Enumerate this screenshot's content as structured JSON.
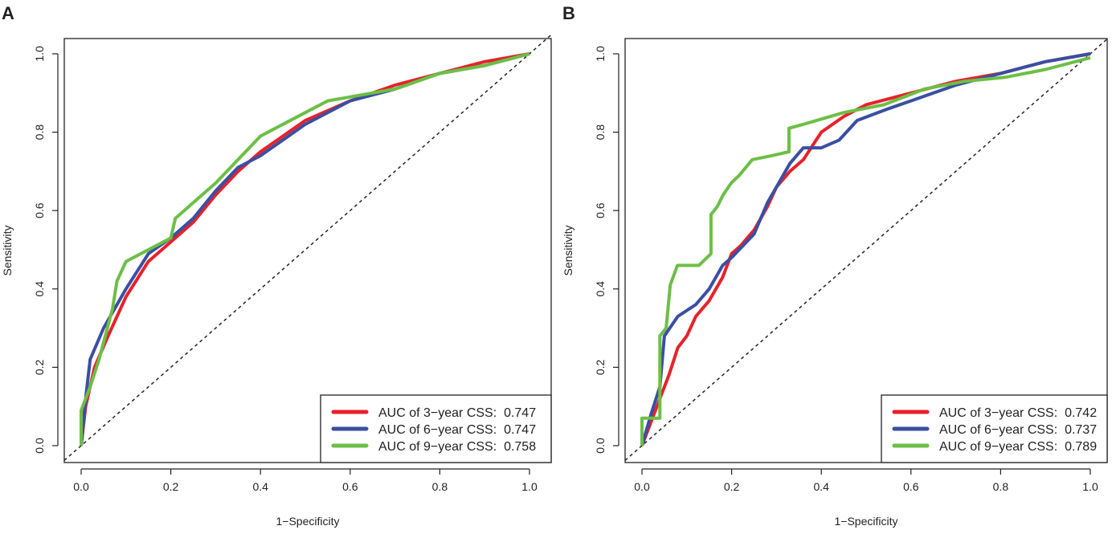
{
  "chart_data": [
    {
      "type": "line",
      "panel_label": "A",
      "xlabel": "1−Specificity",
      "ylabel": "Sensitivity",
      "xlim": [
        0,
        1
      ],
      "ylim": [
        0,
        1
      ],
      "xticks": [
        "0.0",
        "0.2",
        "0.4",
        "0.6",
        "0.8",
        "1.0"
      ],
      "yticks": [
        "0.0",
        "0.2",
        "0.4",
        "0.6",
        "0.8",
        "1.0"
      ],
      "legend_position": "bottom-right",
      "reference_line": "diagonal dashed",
      "series": [
        {
          "name": "AUC of 3−year CSS:  0.747",
          "color": "#e8212a",
          "x": [
            0,
            0.01,
            0.03,
            0.06,
            0.1,
            0.15,
            0.2,
            0.25,
            0.3,
            0.35,
            0.4,
            0.45,
            0.5,
            0.6,
            0.7,
            0.8,
            0.9,
            1
          ],
          "y": [
            0,
            0.1,
            0.2,
            0.28,
            0.38,
            0.47,
            0.52,
            0.57,
            0.64,
            0.7,
            0.75,
            0.79,
            0.83,
            0.88,
            0.92,
            0.95,
            0.98,
            1
          ]
        },
        {
          "name": "AUC of 6−year CSS:  0.747",
          "color": "#3a4fa3",
          "x": [
            0,
            0.01,
            0.02,
            0.05,
            0.1,
            0.15,
            0.2,
            0.25,
            0.3,
            0.35,
            0.4,
            0.45,
            0.5,
            0.6,
            0.7,
            0.8,
            0.9,
            1
          ],
          "y": [
            0,
            0.12,
            0.22,
            0.3,
            0.4,
            0.49,
            0.53,
            0.58,
            0.65,
            0.71,
            0.74,
            0.78,
            0.82,
            0.88,
            0.91,
            0.95,
            0.97,
            1
          ]
        },
        {
          "name": "AUC of 9−year CSS:  0.758",
          "color": "#6cbf45",
          "x": [
            0,
            0,
            0.02,
            0.04,
            0.07,
            0.08,
            0.1,
            0.15,
            0.2,
            0.21,
            0.25,
            0.3,
            0.35,
            0.4,
            0.45,
            0.5,
            0.55,
            0.6,
            0.7,
            0.8,
            0.9,
            1
          ],
          "y": [
            0,
            0.09,
            0.15,
            0.22,
            0.35,
            0.42,
            0.47,
            0.5,
            0.53,
            0.58,
            0.62,
            0.67,
            0.73,
            0.79,
            0.82,
            0.85,
            0.88,
            0.89,
            0.91,
            0.95,
            0.97,
            1
          ]
        }
      ]
    },
    {
      "type": "line",
      "panel_label": "B",
      "xlabel": "1−Specificity",
      "ylabel": "Sensitivity",
      "xlim": [
        0,
        1
      ],
      "ylim": [
        0,
        1
      ],
      "xticks": [
        "0.0",
        "0.2",
        "0.4",
        "0.6",
        "0.8",
        "1.0"
      ],
      "yticks": [
        "0.0",
        "0.2",
        "0.4",
        "0.6",
        "0.8",
        "1.0"
      ],
      "legend_position": "bottom-right",
      "reference_line": "diagonal dashed",
      "series": [
        {
          "name": "AUC of 3−year CSS:  0.742",
          "color": "#e8212a",
          "x": [
            0,
            0.02,
            0.04,
            0.06,
            0.08,
            0.1,
            0.12,
            0.15,
            0.18,
            0.2,
            0.22,
            0.25,
            0.28,
            0.3,
            0.33,
            0.36,
            0.4,
            0.45,
            0.5,
            0.6,
            0.7,
            0.8,
            0.9,
            1
          ],
          "y": [
            0,
            0.06,
            0.12,
            0.18,
            0.25,
            0.28,
            0.33,
            0.37,
            0.43,
            0.49,
            0.51,
            0.55,
            0.61,
            0.66,
            0.7,
            0.73,
            0.8,
            0.84,
            0.87,
            0.9,
            0.93,
            0.95,
            0.98,
            1
          ]
        },
        {
          "name": "AUC of 6−year CSS:  0.737",
          "color": "#3a4fa3",
          "x": [
            0,
            0.02,
            0.04,
            0.05,
            0.08,
            0.12,
            0.15,
            0.18,
            0.2,
            0.25,
            0.28,
            0.3,
            0.33,
            0.36,
            0.4,
            0.44,
            0.48,
            0.55,
            0.6,
            0.7,
            0.8,
            0.9,
            1
          ],
          "y": [
            0,
            0.08,
            0.15,
            0.28,
            0.33,
            0.36,
            0.4,
            0.46,
            0.48,
            0.54,
            0.62,
            0.66,
            0.72,
            0.76,
            0.76,
            0.78,
            0.83,
            0.86,
            0.88,
            0.92,
            0.95,
            0.98,
            1
          ]
        },
        {
          "name": "AUC of 9−year CSS:  0.789",
          "color": "#6cbf45",
          "x": [
            0,
            0,
            0.04,
            0.04,
            0.054,
            0.063,
            0.079,
            0.127,
            0.154,
            0.154,
            0.168,
            0.181,
            0.199,
            0.217,
            0.246,
            0.289,
            0.328,
            0.328,
            0.36,
            0.45,
            0.54,
            0.63,
            0.72,
            0.81,
            0.9,
            1
          ],
          "y": [
            0,
            0.07,
            0.07,
            0.28,
            0.3,
            0.41,
            0.46,
            0.46,
            0.49,
            0.59,
            0.61,
            0.64,
            0.67,
            0.69,
            0.73,
            0.74,
            0.75,
            0.81,
            0.82,
            0.85,
            0.87,
            0.91,
            0.93,
            0.94,
            0.96,
            0.99
          ]
        }
      ]
    }
  ]
}
